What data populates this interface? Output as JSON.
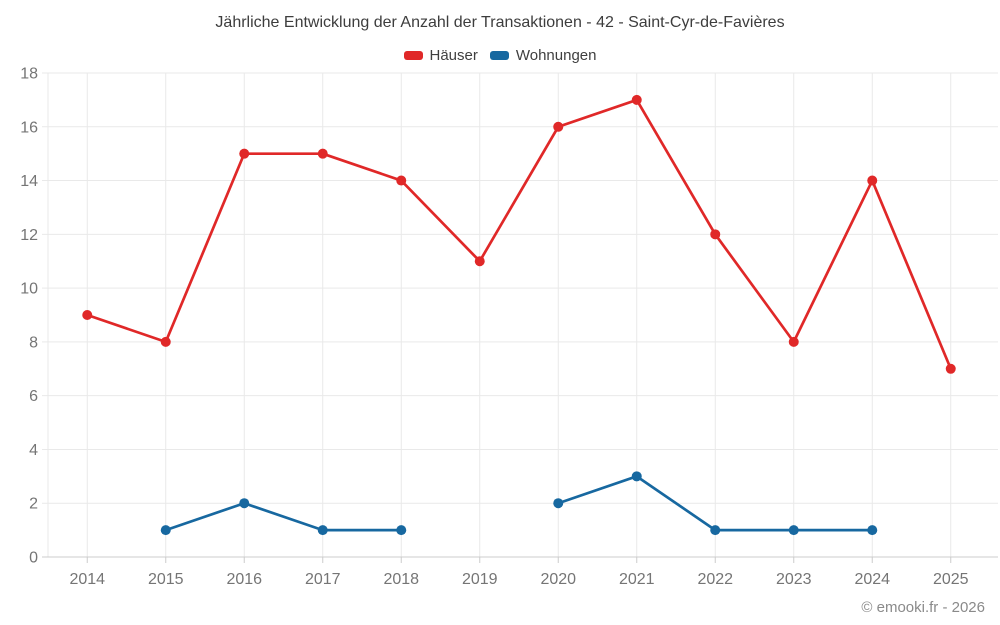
{
  "title": "Jährliche Entwicklung der Anzahl der Transaktionen - 42 - Saint-Cyr-de-Favières",
  "legend": {
    "items": [
      {
        "label": "Häuser",
        "color": "#e02828"
      },
      {
        "label": "Wohnungen",
        "color": "#1768a0"
      }
    ]
  },
  "footer": {
    "credit": "© emooki.fr - 2026"
  },
  "chart_data": {
    "type": "line",
    "title": "Jährliche Entwicklung der Anzahl der Transaktionen - 42 - Saint-Cyr-de-Favières",
    "categories": [
      "2014",
      "2015",
      "2016",
      "2017",
      "2018",
      "2019",
      "2020",
      "2021",
      "2022",
      "2023",
      "2024",
      "2025"
    ],
    "series": [
      {
        "name": "Häuser",
        "color": "#e02828",
        "values": [
          9,
          8,
          15,
          15,
          14,
          11,
          16,
          17,
          12,
          8,
          14,
          7
        ]
      },
      {
        "name": "Wohnungen",
        "color": "#1768a0",
        "values": [
          null,
          1,
          2,
          1,
          1,
          null,
          2,
          3,
          1,
          1,
          1,
          null
        ]
      }
    ],
    "xlabel": "",
    "ylabel": "",
    "ylim": [
      0,
      18
    ],
    "ytick_step": 2,
    "grid": true,
    "legend_position": "top",
    "colors": {
      "grid": "#e9e9e9",
      "axis": "#cccccc",
      "tick_label": "#757575"
    }
  }
}
